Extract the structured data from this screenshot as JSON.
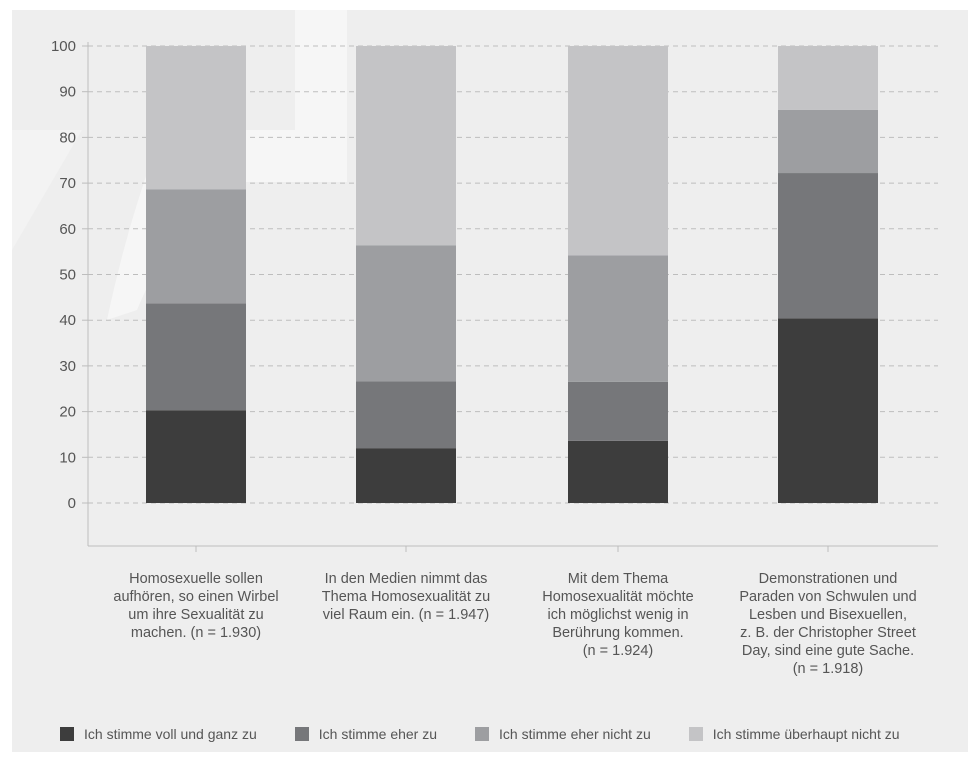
{
  "chart_data": {
    "type": "bar",
    "stacked": true,
    "title": "",
    "xlabel": "",
    "ylabel": "",
    "ylim": [
      0,
      100
    ],
    "yticks": [
      0,
      10,
      20,
      30,
      40,
      50,
      60,
      70,
      80,
      90,
      100
    ],
    "grid": true,
    "legend_position": "bottom",
    "categories": [
      "Homosexuelle sollen\naufhören, so einen Wirbel\num ihre Sexualität zu\nmachen. (n = 1.930)",
      "In den Medien nimmt das\nThema Homosexualität zu\nviel Raum ein. (n = 1.947)",
      "Mit dem Thema\nHomosexualität möchte\nich möglichst wenig in\nBerührung kommen.\n(n = 1.924)",
      "Demonstrationen und\nParaden von Schwulen und\nLesben und Bisexuellen,\nz. B. der Christopher Street\nDay, sind eine gute Sache.\n(n = 1.918)"
    ],
    "series": [
      {
        "name": "Ich stimme voll und ganz zu",
        "color": "#3d3d3d",
        "values": [
          20.3,
          12.0,
          13.6,
          40.4
        ]
      },
      {
        "name": "Ich stimme eher zu",
        "color": "#76777a",
        "values": [
          23.4,
          14.6,
          12.9,
          31.8
        ]
      },
      {
        "name": "Ich stimme eher nicht zu",
        "color": "#9d9ea1",
        "values": [
          24.9,
          29.8,
          27.7,
          13.8
        ]
      },
      {
        "name": "Ich stimme überhaupt nicht zu",
        "color": "#c4c4c6",
        "values": [
          31.4,
          43.6,
          45.8,
          14.0
        ]
      }
    ]
  }
}
